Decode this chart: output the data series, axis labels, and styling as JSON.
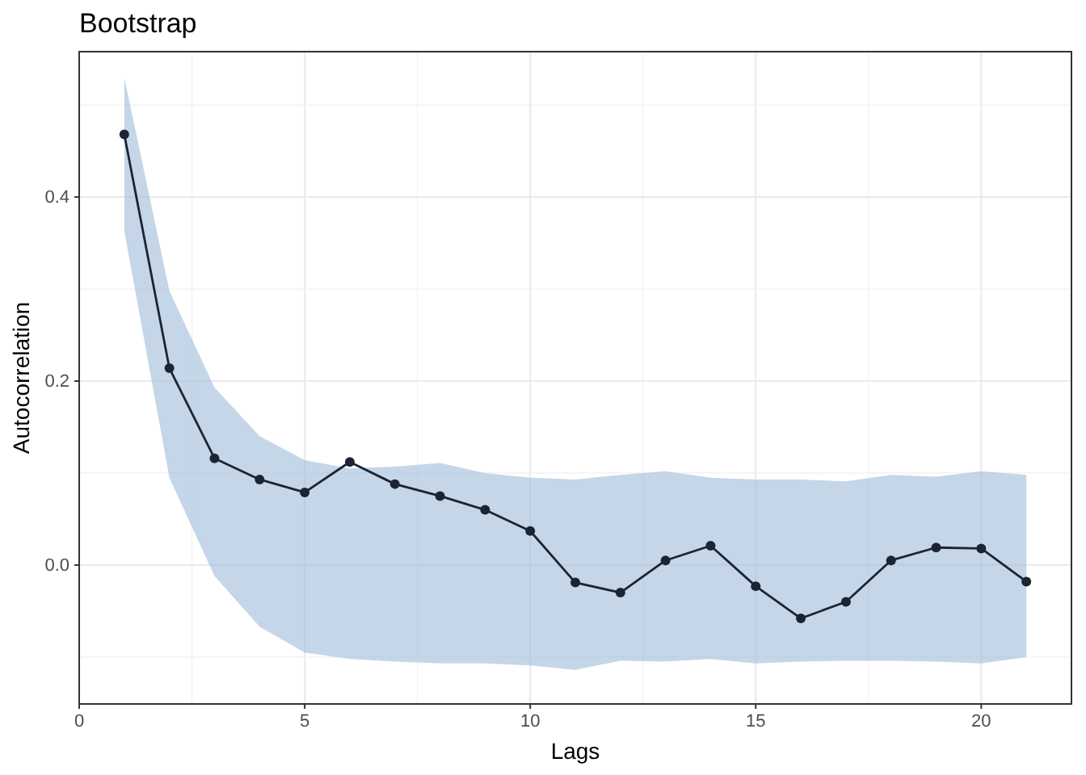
{
  "chart_data": {
    "type": "line",
    "title": "Bootstrap",
    "xlabel": "Lags",
    "ylabel": "Autocorrelation",
    "x": [
      1,
      2,
      3,
      4,
      5,
      6,
      7,
      8,
      9,
      10,
      11,
      12,
      13,
      14,
      15,
      16,
      17,
      18,
      19,
      20,
      21
    ],
    "series": [
      {
        "color": "#1b2433",
        "values": [
          0.468,
          0.214,
          0.116,
          0.093,
          0.079,
          0.112,
          0.088,
          0.075,
          0.06,
          0.037,
          -0.019,
          -0.03,
          0.005,
          0.021,
          -0.023,
          -0.058,
          -0.04,
          0.005,
          0.019,
          0.018,
          -0.018
        ],
        "lower": [
          0.363,
          0.095,
          -0.012,
          -0.067,
          -0.095,
          -0.102,
          -0.105,
          -0.107,
          -0.107,
          -0.109,
          -0.114,
          -0.104,
          -0.105,
          -0.102,
          -0.107,
          -0.105,
          -0.104,
          -0.104,
          -0.105,
          -0.107,
          -0.1
        ],
        "upper": [
          0.53,
          0.298,
          0.193,
          0.14,
          0.114,
          0.105,
          0.107,
          0.111,
          0.1,
          0.095,
          0.093,
          0.098,
          0.102,
          0.095,
          0.093,
          0.093,
          0.091,
          0.098,
          0.096,
          0.102,
          0.098
        ]
      }
    ],
    "xlim": [
      0,
      22
    ],
    "ylim": [
      -0.151,
      0.558
    ],
    "xticks": [
      0,
      5,
      10,
      15,
      20
    ],
    "yticks": [
      {
        "value": 0,
        "label": "0.0"
      },
      {
        "value": 0.2,
        "label": "0.2"
      },
      {
        "value": 0.4,
        "label": "0.4"
      }
    ],
    "grid": true,
    "marker": "circle",
    "line_style": "solid"
  }
}
